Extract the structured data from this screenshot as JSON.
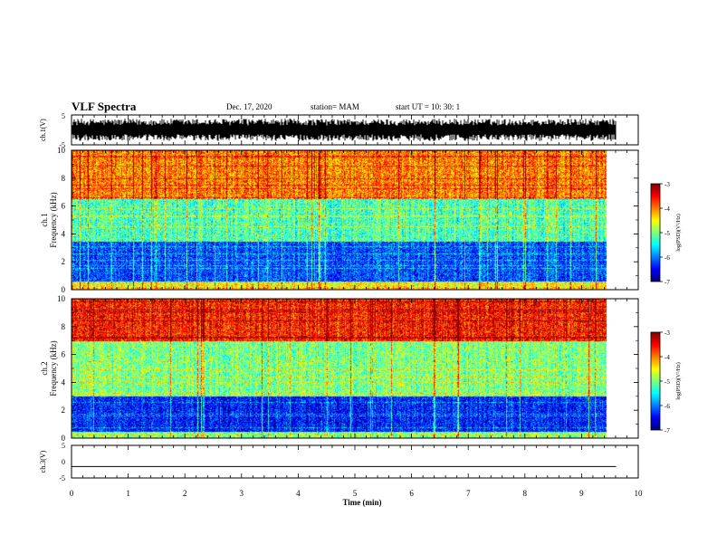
{
  "header": {
    "title": "VLF Spectra",
    "date": "Dec. 17, 2020",
    "station": "station= MAM",
    "start": "start  UT =   10: 30: 1"
  },
  "chart_data": [
    {
      "type": "line",
      "panel": "ch1-waveform",
      "ylabel": "ch.1(V)",
      "ylim": [
        -5,
        5
      ],
      "yticks": [
        "5",
        "-5"
      ],
      "color": "#000000",
      "description_values": "dense noise waveform spanning roughly -3.5 to 3.5 V over 0-9.8 min"
    },
    {
      "type": "heatmap",
      "panel": "ch1-spectrogram",
      "ylabel": "ch.1\nFrequency (kHz)",
      "ylabel_lines": [
        "ch.1",
        "Frequency (kHz)"
      ],
      "ylim": [
        0,
        10
      ],
      "yticks": [
        0,
        2,
        4,
        6,
        8,
        10
      ],
      "colorbar": {
        "label": "log(PSD)(V²/Hz)",
        "range": [
          -7,
          -3
        ],
        "ticks": [
          "-3",
          "-4",
          "-5",
          "-6",
          "-7"
        ]
      },
      "bands": [
        {
          "f_low": 0,
          "f_high": 0.6,
          "level": -4.5
        },
        {
          "f_low": 0.6,
          "f_high": 3.5,
          "level": -6.2
        },
        {
          "f_low": 3.5,
          "f_high": 6.5,
          "level": -5.2
        },
        {
          "f_low": 6.5,
          "f_high": 10,
          "level": -4.0
        }
      ]
    },
    {
      "type": "heatmap",
      "panel": "ch2-spectrogram",
      "ylabel_lines": [
        "ch.2",
        "Frequency (kHz)"
      ],
      "ylim": [
        0,
        10
      ],
      "yticks": [
        0,
        2,
        4,
        6,
        8,
        10
      ],
      "colorbar": {
        "label": "log(PSD)(V²/Hz)",
        "range": [
          -7,
          -3
        ],
        "ticks": [
          "-3",
          "-4",
          "-5",
          "-6",
          "-7"
        ]
      },
      "bands": [
        {
          "f_low": 0,
          "f_high": 0.5,
          "level": -5.0
        },
        {
          "f_low": 0.5,
          "f_high": 3.0,
          "level": -6.4
        },
        {
          "f_low": 3.0,
          "f_high": 7.0,
          "level": -5.0
        },
        {
          "f_low": 7.0,
          "f_high": 10,
          "level": -3.6
        }
      ]
    },
    {
      "type": "line",
      "panel": "ch3-waveform",
      "ylabel": "ch.3(V)",
      "ylim": [
        -5,
        5
      ],
      "yticks": [
        "5",
        "0",
        "-5"
      ],
      "values_constant": -1.5
    }
  ],
  "xaxis": {
    "label": "Time (min)",
    "range": [
      0,
      10
    ],
    "ticks": [
      "0",
      "1",
      "2",
      "3",
      "4",
      "5",
      "6",
      "7",
      "8",
      "9",
      "10"
    ],
    "data_end": 9.8
  }
}
